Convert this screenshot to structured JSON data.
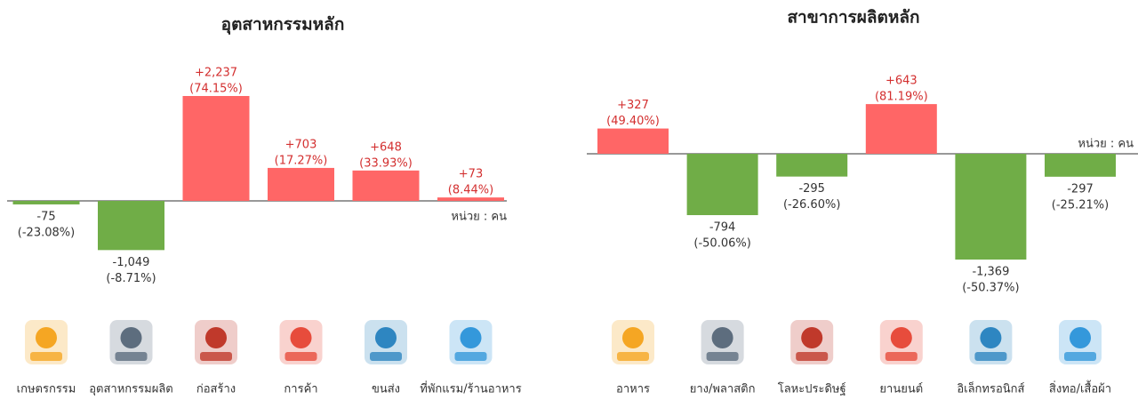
{
  "chart_data": [
    {
      "type": "bar",
      "title": "อุตสาหกรรมหลัก",
      "unit": "หน่วย : คน",
      "categories": [
        "เกษตรกรรม",
        "อุตสาหกรรมผลิต",
        "ก่อสร้าง",
        "การค้า",
        "ขนส่ง",
        "ที่พักแรม/ร้านอาหาร"
      ],
      "values": [
        -75,
        -1049,
        2237,
        703,
        648,
        73
      ],
      "value_labels": [
        "-75",
        "-1,049",
        "+2,237",
        "+703",
        "+648",
        "+73"
      ],
      "percents": [
        -23.08,
        -8.71,
        74.15,
        17.27,
        33.93,
        8.44
      ],
      "percent_labels": [
        "(-23.08%)",
        "(-8.71%)",
        "(74.15%)",
        "(17.27%)",
        "(33.93%)",
        "(8.44%)"
      ],
      "positive_color": "#ff6666",
      "negative_color": "#70ad47"
    },
    {
      "type": "bar",
      "title": "สาขาการผลิตหลัก",
      "unit": "หน่วย : คน",
      "categories": [
        "อาหาร",
        "ยาง/พลาสติก",
        "โลหะประดิษฐ์",
        "ยานยนต์",
        "อิเล็กทรอนิกส์",
        "สิ่งทอ/เสื้อผ้า"
      ],
      "values": [
        327,
        -794,
        -295,
        643,
        -1369,
        -297
      ],
      "value_labels": [
        "+327",
        "-794",
        "-295",
        "+643",
        "-1,369",
        "-297"
      ],
      "percents": [
        49.4,
        -50.06,
        -26.6,
        81.19,
        -50.37,
        -25.21
      ],
      "percent_labels": [
        "(49.40%)",
        "(-50.06%)",
        "(-26.60%)",
        "(81.19%)",
        "(-50.37%)",
        "(-25.21%)"
      ],
      "positive_color": "#ff6666",
      "negative_color": "#70ad47"
    }
  ]
}
